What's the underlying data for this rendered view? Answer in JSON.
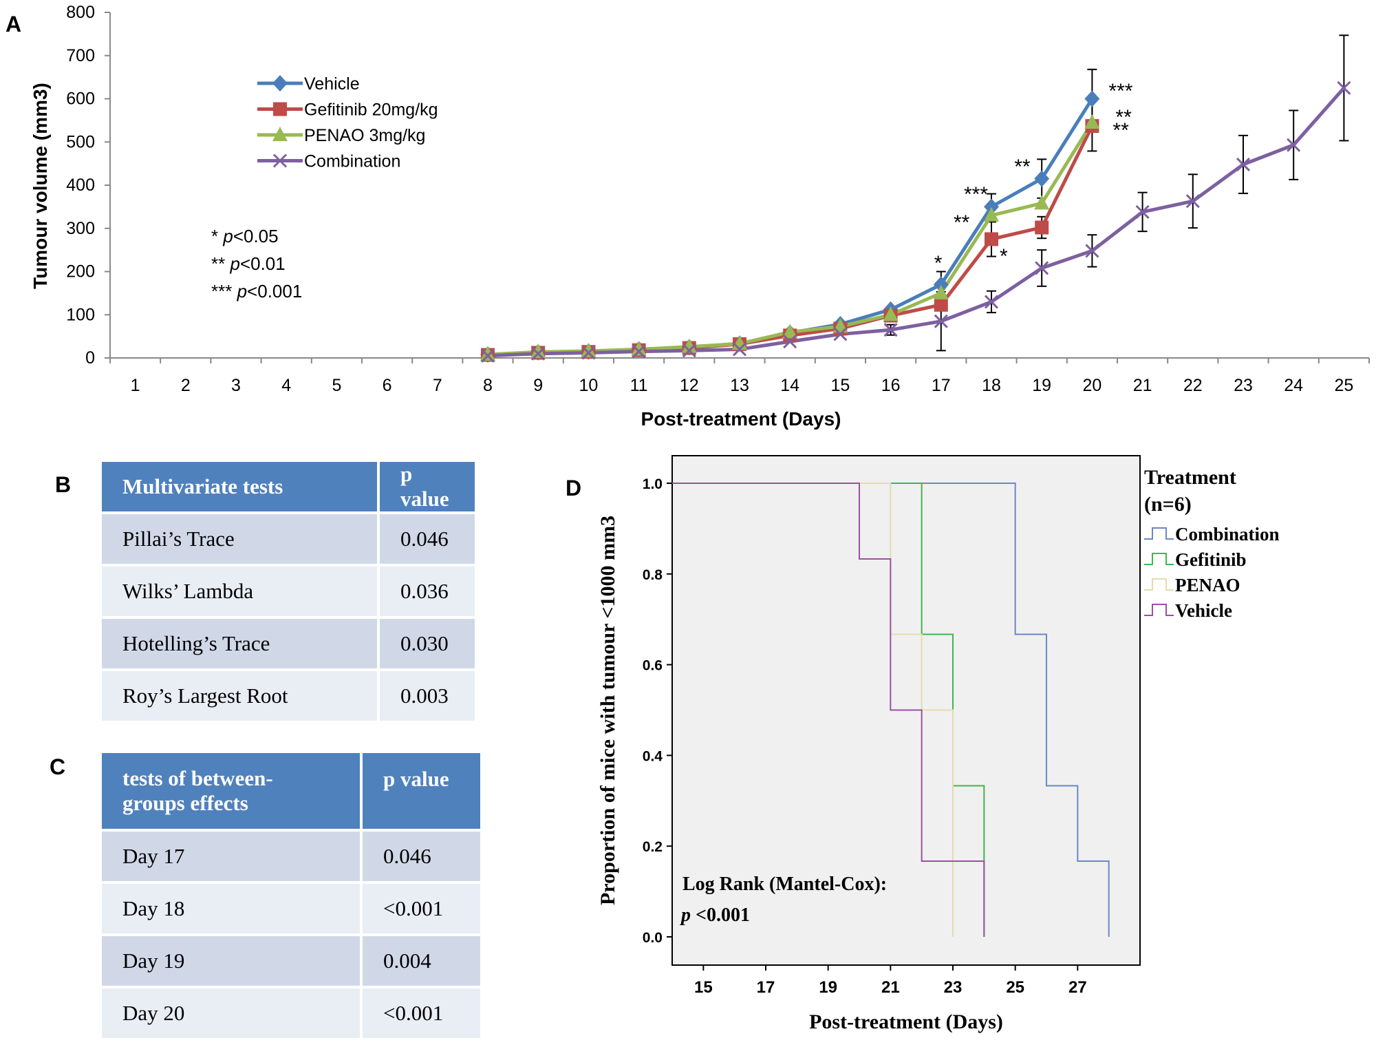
{
  "panel_labels": {
    "a": "A",
    "b": "B",
    "c": "C",
    "d": "D"
  },
  "chart_data": [
    {
      "panel": "A",
      "type": "line",
      "xlabel": "Post-treatment (Days)",
      "ylabel": "Tumour volume (mm3)",
      "ylim": [
        0,
        800
      ],
      "yticks": [
        0,
        100,
        200,
        300,
        400,
        500,
        600,
        700,
        800
      ],
      "categories": [
        "1",
        "2",
        "3",
        "4",
        "5",
        "6",
        "7",
        "8",
        "9",
        "10",
        "11",
        "12",
        "13",
        "14",
        "15",
        "16",
        "17",
        "18",
        "19",
        "20",
        "21",
        "22",
        "23",
        "24",
        "25"
      ],
      "legend_position": "top-left",
      "series": [
        {
          "name": "Vehicle",
          "color": "#4a7ebb",
          "marker": "diamond",
          "x": [
            8,
            9,
            10,
            11,
            12,
            13,
            14,
            15,
            16,
            17,
            18,
            19,
            20
          ],
          "y": [
            8,
            13,
            15,
            20,
            25,
            33,
            58,
            78,
            112,
            170,
            350,
            415,
            600
          ],
          "err": [
            0,
            0,
            0,
            0,
            0,
            0,
            0,
            0,
            0,
            30,
            30,
            45,
            68
          ]
        },
        {
          "name": "Gefitinib 20mg/kg",
          "color": "#be4b48",
          "marker": "square",
          "x": [
            8,
            9,
            10,
            11,
            12,
            13,
            14,
            15,
            16,
            17,
            18,
            19,
            20
          ],
          "y": [
            7,
            12,
            14,
            18,
            23,
            32,
            52,
            68,
            98,
            123,
            275,
            302,
            537
          ],
          "err": [
            0,
            0,
            0,
            0,
            0,
            0,
            0,
            0,
            0,
            0,
            40,
            25,
            58
          ]
        },
        {
          "name": "PENAO 3mg/kg",
          "color": "#98b954",
          "marker": "triangle",
          "x": [
            8,
            9,
            10,
            11,
            12,
            13,
            14,
            15,
            16,
            17,
            18,
            19,
            20
          ],
          "y": [
            8,
            14,
            16,
            20,
            26,
            33,
            60,
            73,
            100,
            150,
            330,
            358,
            545
          ],
          "err": [
            0,
            0,
            0,
            0,
            0,
            0,
            0,
            0,
            0,
            0,
            0,
            0,
            0
          ]
        },
        {
          "name": "Combination",
          "color": "#7d60a0",
          "marker": "x",
          "x": [
            8,
            9,
            10,
            11,
            12,
            13,
            14,
            15,
            16,
            17,
            18,
            19,
            20,
            21,
            22,
            23,
            24,
            25
          ],
          "y": [
            5,
            10,
            12,
            15,
            17,
            20,
            38,
            55,
            65,
            85,
            130,
            208,
            248,
            338,
            363,
            448,
            493,
            625
          ],
          "err": [
            0,
            0,
            0,
            0,
            0,
            0,
            0,
            0,
            12,
            68,
            25,
            42,
            37,
            45,
            62,
            67,
            80,
            122
          ]
        }
      ],
      "significance": [
        {
          "x": 17,
          "text": "*"
        },
        {
          "x": 18,
          "text": "***"
        },
        {
          "x": 18,
          "text": "**"
        },
        {
          "x": 18,
          "text": "*"
        },
        {
          "x": 19,
          "text": "**"
        },
        {
          "x": 20,
          "text": "***"
        },
        {
          "x": 20,
          "text": "**"
        },
        {
          "x": 20,
          "text": "**"
        }
      ],
      "pvalue_key": [
        {
          "stars": "* ",
          "p": "p",
          "rest": "<0.05"
        },
        {
          "stars": "** ",
          "p": "p",
          "rest": "<0.01"
        },
        {
          "stars": "*** ",
          "p": "p",
          "rest": "<0.001"
        }
      ]
    },
    {
      "panel": "D",
      "type": "line",
      "subtype": "step",
      "xlabel": "Post-treatment (Days)",
      "ylabel": "Proportion of mice with tumour <1000 mm3",
      "xlim": [
        14,
        29
      ],
      "ylim": [
        0,
        1.0
      ],
      "xticks": [
        15,
        17,
        19,
        21,
        23,
        25,
        27
      ],
      "yticks": [
        "0.0",
        "0.2",
        "0.4",
        "0.6",
        "0.8",
        "1.0"
      ],
      "background": "#f0f0f0",
      "legend_title_1": "Treatment",
      "legend_title_2": "(n=6)",
      "series": [
        {
          "name": "Combination",
          "color": "#6d86c6",
          "steps": [
            [
              14,
              1.0
            ],
            [
              25,
              0.667
            ],
            [
              26,
              0.333
            ],
            [
              27,
              0.167
            ],
            [
              28,
              0.0
            ]
          ]
        },
        {
          "name": "Gefitinib",
          "color": "#3cb84a",
          "steps": [
            [
              14,
              1.0
            ],
            [
              22,
              0.667
            ],
            [
              23,
              0.333
            ],
            [
              24,
              0.0
            ]
          ]
        },
        {
          "name": "PENAO",
          "color": "#e5dcae",
          "steps": [
            [
              14,
              1.0
            ],
            [
              21,
              0.667
            ],
            [
              22,
              0.5
            ],
            [
              23,
              0.0
            ]
          ]
        },
        {
          "name": "Vehicle",
          "color": "#9a51a0",
          "steps": [
            [
              14,
              1.0
            ],
            [
              20,
              0.833
            ],
            [
              21,
              0.5
            ],
            [
              22,
              0.167
            ],
            [
              24,
              0.0
            ]
          ]
        }
      ],
      "annotation_line1": "Log Rank (Mantel-Cox):",
      "annotation_p": "p",
      "annotation_rest": " <0.001"
    }
  ],
  "table_b": {
    "headers": [
      "Multivariate tests",
      "p value"
    ],
    "rows": [
      [
        "Pillai’s Trace",
        "0.046"
      ],
      [
        "Wilks’ Lambda",
        "0.036"
      ],
      [
        "Hotelling’s Trace",
        "0.030"
      ],
      [
        "Roy’s Largest Root",
        "0.003"
      ]
    ]
  },
  "table_c": {
    "header_line1": "tests of between-",
    "header_line2": "groups effects",
    "header_p": "p value",
    "rows": [
      [
        "Day 17",
        "0.046"
      ],
      [
        "Day 18",
        "<0.001"
      ],
      [
        "Day 19",
        "0.004"
      ],
      [
        "Day 20",
        "<0.001"
      ]
    ]
  }
}
